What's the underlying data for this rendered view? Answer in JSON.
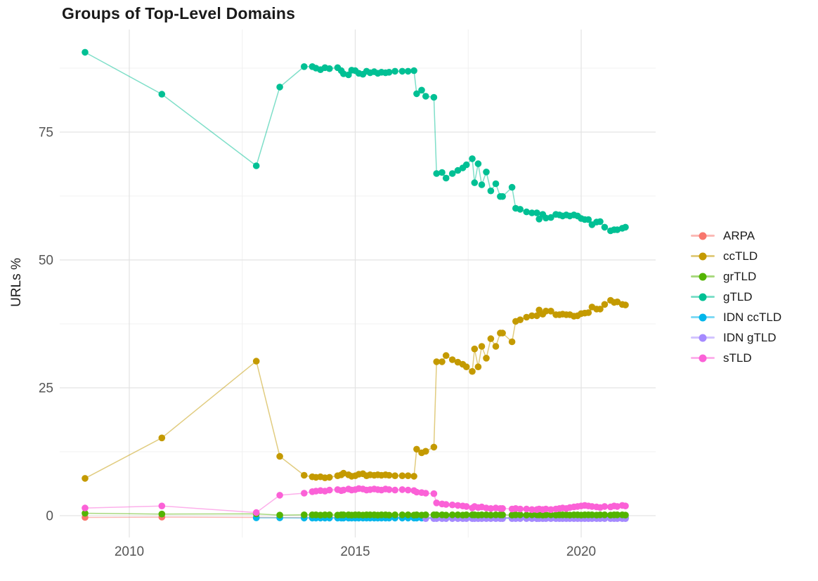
{
  "title": "Groups of Top-Level Domains",
  "y_axis_label": "URLs %",
  "colors": {
    "background": "#ffffff",
    "grid_major": "#e3e3e3",
    "grid_minor": "#f0f0f0",
    "axis_text": "#555555",
    "title_text": "#1a1a1a"
  },
  "legend": {
    "position": "right",
    "entries": [
      {
        "label": "ARPA",
        "color": "#F8766D"
      },
      {
        "label": "ccTLD",
        "color": "#C49A00"
      },
      {
        "label": "grTLD",
        "color": "#53B400"
      },
      {
        "label": "gTLD",
        "color": "#00C094"
      },
      {
        "label": "IDN ccTLD",
        "color": "#00B6EB"
      },
      {
        "label": "IDN gTLD",
        "color": "#A58AFF"
      },
      {
        "label": "sTLD",
        "color": "#FB61D7"
      }
    ]
  },
  "chart_data": {
    "type": "line",
    "title": "Groups of Top-Level Domains",
    "xlabel": "",
    "ylabel": "URLs %",
    "x_unit": "year (decimal)",
    "xlim": [
      2008.5,
      2021.7
    ],
    "ylim": [
      -4,
      95
    ],
    "xticks": [
      2010,
      2015,
      2020
    ],
    "yticks": [
      0,
      25,
      50,
      75
    ],
    "grid": true,
    "legend_position": "right",
    "x": [
      2009.02,
      2010.72,
      2012.81,
      2013.33,
      2013.87,
      2014.05,
      2014.13,
      2014.23,
      2014.33,
      2014.43,
      2014.61,
      2014.69,
      2014.74,
      2014.85,
      2014.92,
      2015.0,
      2015.08,
      2015.17,
      2015.25,
      2015.33,
      2015.42,
      2015.5,
      2015.58,
      2015.67,
      2015.75,
      2015.88,
      2016.04,
      2016.17,
      2016.3,
      2016.36,
      2016.47,
      2016.56,
      2016.74,
      2016.8,
      2016.92,
      2017.01,
      2017.15,
      2017.27,
      2017.38,
      2017.46,
      2017.59,
      2017.64,
      2017.72,
      2017.8,
      2017.9,
      2018.0,
      2018.11,
      2018.21,
      2018.26,
      2018.47,
      2018.55,
      2018.65,
      2018.79,
      2018.91,
      2019.02,
      2019.07,
      2019.15,
      2019.22,
      2019.33,
      2019.44,
      2019.52,
      2019.59,
      2019.67,
      2019.75,
      2019.84,
      2019.92,
      2020.0,
      2020.08,
      2020.16,
      2020.24,
      2020.34,
      2020.42,
      2020.52,
      2020.65,
      2020.73,
      2020.8,
      2020.91,
      2020.98
    ],
    "series": [
      {
        "name": "ARPA",
        "color": "#F8766D",
        "values": [
          0.1,
          0.15,
          0.1,
          0.05,
          0.05,
          0.05,
          0.05,
          0.05,
          0.05,
          0.05,
          0.05,
          0.05,
          0.05,
          0.05,
          0.05,
          0.05,
          0.05,
          0.05,
          0.05,
          0.05,
          0.05,
          0.05,
          0.05,
          0.05,
          0.05,
          0.05,
          0.05,
          0.05,
          0.05,
          0.05,
          0.05,
          0.05,
          0.05,
          0.05,
          0.05,
          0.05,
          0.05,
          0.05,
          0.05,
          0.05,
          0.05,
          0.05,
          0.05,
          0.05,
          0.05,
          0.05,
          0.05,
          0.05,
          0.05,
          0.05,
          0.05,
          0.05,
          0.05,
          0.05,
          0.05,
          0.05,
          0.05,
          0.05,
          0.05,
          0.05,
          0.05,
          0.05,
          0.05,
          0.05,
          0.05,
          0.05,
          0.05,
          0.05,
          0.05,
          0.05,
          0.05,
          0.05,
          0.05,
          0.05,
          0.05,
          0.05,
          0.05,
          0.05
        ]
      },
      {
        "name": "ccTLD",
        "color": "#C49A00",
        "values": [
          7.3,
          15.2,
          30.2,
          11.6,
          7.9,
          7.6,
          7.5,
          7.6,
          7.4,
          7.5,
          7.8,
          8.0,
          8.3,
          8.0,
          7.7,
          7.8,
          8.1,
          8.2,
          7.8,
          8.0,
          7.9,
          8.0,
          7.9,
          8.0,
          7.9,
          7.8,
          7.8,
          7.8,
          7.7,
          13.0,
          12.3,
          12.6,
          13.4,
          30.1,
          30.1,
          31.3,
          30.5,
          30.0,
          29.6,
          29.1,
          28.2,
          32.6,
          29.1,
          33.1,
          30.8,
          34.6,
          33.1,
          35.7,
          35.7,
          34.0,
          38.0,
          38.3,
          38.8,
          39.1,
          39.1,
          40.2,
          39.4,
          40.0,
          40.0,
          39.3,
          39.3,
          39.4,
          39.3,
          39.3,
          39.0,
          39.1,
          39.5,
          39.6,
          39.7,
          40.8,
          40.4,
          40.4,
          41.3,
          42.1,
          41.7,
          41.8,
          41.3,
          41.2
        ]
      },
      {
        "name": "grTLD",
        "color": "#53B400",
        "values": [
          0.6,
          0.45,
          0.5,
          0.25,
          0.3,
          0.3,
          0.3,
          0.25,
          0.3,
          0.3,
          0.25,
          0.3,
          0.3,
          0.3,
          0.25,
          0.3,
          0.3,
          0.25,
          0.3,
          0.3,
          0.3,
          0.25,
          0.3,
          0.3,
          0.25,
          0.3,
          0.3,
          0.3,
          0.25,
          0.3,
          0.25,
          0.3,
          0.3,
          0.3,
          0.3,
          0.25,
          0.3,
          0.3,
          0.25,
          0.3,
          0.3,
          0.3,
          0.25,
          0.3,
          0.3,
          0.25,
          0.3,
          0.3,
          0.3,
          0.25,
          0.3,
          0.3,
          0.25,
          0.3,
          0.3,
          0.3,
          0.25,
          0.3,
          0.3,
          0.25,
          0.3,
          0.3,
          0.3,
          0.25,
          0.3,
          0.3,
          0.25,
          0.3,
          0.3,
          0.3,
          0.25,
          0.3,
          0.3,
          0.25,
          0.3,
          0.3,
          0.3,
          0.25
        ]
      },
      {
        "name": "gTLD",
        "color": "#00C094",
        "values": [
          90.6,
          82.4,
          68.4,
          83.8,
          87.8,
          87.8,
          87.5,
          87.2,
          87.6,
          87.4,
          87.6,
          87.0,
          86.4,
          86.2,
          87.1,
          87.0,
          86.5,
          86.3,
          86.9,
          86.6,
          86.8,
          86.5,
          86.7,
          86.6,
          86.7,
          86.9,
          86.9,
          86.9,
          87.0,
          82.5,
          83.2,
          82.0,
          81.8,
          66.9,
          67.1,
          66.0,
          66.9,
          67.5,
          68.0,
          68.6,
          69.8,
          65.1,
          68.8,
          64.7,
          67.2,
          63.5,
          64.9,
          62.4,
          62.4,
          64.2,
          60.1,
          59.9,
          59.4,
          59.2,
          59.2,
          58.0,
          58.9,
          58.2,
          58.3,
          58.9,
          58.8,
          58.6,
          58.8,
          58.6,
          58.8,
          58.6,
          58.1,
          57.9,
          57.9,
          56.9,
          57.4,
          57.5,
          56.4,
          55.7,
          55.9,
          55.9,
          56.2,
          56.4
        ]
      },
      {
        "name": "IDN ccTLD",
        "color": "#00B6EB",
        "values": [
          null,
          null,
          0.1,
          0.1,
          0.05,
          0.05,
          0.05,
          0.05,
          0.05,
          0.05,
          0.05,
          0.05,
          0.05,
          0.05,
          0.05,
          0.05,
          0.05,
          0.05,
          0.05,
          0.05,
          0.05,
          0.05,
          0.05,
          0.05,
          0.05,
          0.05,
          0.05,
          0.05,
          0.05,
          0.05,
          0.05,
          0.05,
          0.05,
          0.05,
          0.05,
          0.05,
          0.05,
          0.05,
          0.05,
          0.05,
          0.05,
          0.05,
          0.05,
          0.05,
          0.05,
          0.05,
          0.05,
          0.05,
          0.05,
          0.05,
          0.05,
          0.05,
          0.05,
          0.05,
          0.05,
          0.05,
          0.05,
          0.05,
          0.05,
          0.05,
          0.05,
          0.05,
          0.05,
          0.05,
          0.05,
          0.05,
          0.05,
          0.05,
          0.05,
          0.05,
          0.05,
          0.05,
          0.05,
          0.05,
          0.05,
          0.05,
          0.05,
          0.05
        ]
      },
      {
        "name": "IDN gTLD",
        "color": "#A58AFF",
        "values": [
          null,
          null,
          null,
          null,
          null,
          null,
          null,
          null,
          null,
          null,
          null,
          null,
          null,
          null,
          null,
          null,
          null,
          null,
          null,
          null,
          null,
          null,
          null,
          null,
          null,
          null,
          null,
          null,
          null,
          null,
          null,
          0.05,
          0.05,
          0.05,
          0.05,
          0.05,
          0.05,
          0.05,
          0.05,
          0.05,
          0.05,
          0.05,
          0.05,
          0.05,
          0.05,
          0.05,
          0.05,
          0.05,
          0.05,
          0.05,
          0.05,
          0.05,
          0.05,
          0.05,
          0.05,
          0.05,
          0.05,
          0.05,
          0.05,
          0.05,
          0.05,
          0.05,
          0.05,
          0.05,
          0.05,
          0.05,
          0.05,
          0.05,
          0.05,
          0.05,
          0.05,
          0.05,
          0.05,
          0.05,
          0.05,
          0.05,
          0.05,
          0.05
        ]
      },
      {
        "name": "sTLD",
        "color": "#FB61D7",
        "values": [
          1.5,
          1.9,
          0.6,
          4.0,
          4.4,
          4.7,
          4.8,
          4.9,
          4.8,
          5.0,
          5.1,
          4.9,
          5.0,
          5.2,
          5.0,
          5.1,
          5.3,
          5.2,
          5.0,
          5.1,
          5.2,
          5.1,
          5.0,
          5.2,
          5.1,
          5.0,
          5.1,
          5.0,
          4.9,
          4.6,
          4.5,
          4.4,
          4.3,
          2.5,
          2.3,
          2.2,
          2.1,
          2.0,
          1.9,
          1.8,
          1.5,
          1.8,
          1.6,
          1.7,
          1.5,
          1.4,
          1.5,
          1.4,
          1.4,
          1.3,
          1.4,
          1.3,
          1.3,
          1.2,
          1.2,
          1.3,
          1.2,
          1.3,
          1.2,
          1.3,
          1.4,
          1.5,
          1.4,
          1.6,
          1.7,
          1.8,
          1.9,
          2.0,
          1.9,
          1.8,
          1.7,
          1.6,
          1.8,
          1.7,
          1.9,
          1.8,
          2.0,
          1.9
        ]
      }
    ]
  }
}
